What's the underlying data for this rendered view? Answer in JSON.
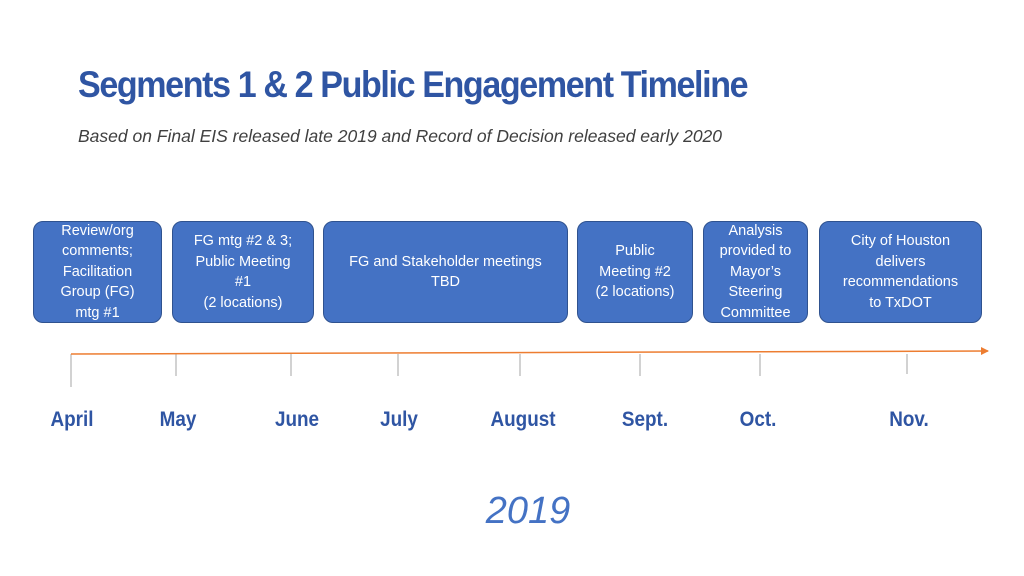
{
  "header": {
    "title": "Segments 1 & 2 Public Engagement Timeline",
    "subtitle": "Based on Final EIS released late 2019 and Record of Decision released early 2020"
  },
  "boxes": [
    {
      "text": "Review/org\ncomments;\nFacilitation\nGroup (FG)\nmtg #1"
    },
    {
      "text": "FG mtg #2 & 3;\nPublic Meeting\n#1\n(2 locations)"
    },
    {
      "text": "FG and Stakeholder meetings\nTBD"
    },
    {
      "text": "Public\nMeeting #2\n(2 locations)"
    },
    {
      "text": "Analysis\nprovided to\nMayor’s\nSteering\nCommittee"
    },
    {
      "text": "City of Houston\ndelivers\nrecommendations\nto TxDOT"
    }
  ],
  "months": [
    "April",
    "May",
    "June",
    "July",
    "August",
    "Sept.",
    "Oct.",
    "Nov."
  ],
  "year": "2019",
  "colors": {
    "title": "#2f55a3",
    "box_fill": "#4472c4",
    "box_border": "#2f528f",
    "arrow": "#ed7d31",
    "tick": "#a6a6a6"
  }
}
